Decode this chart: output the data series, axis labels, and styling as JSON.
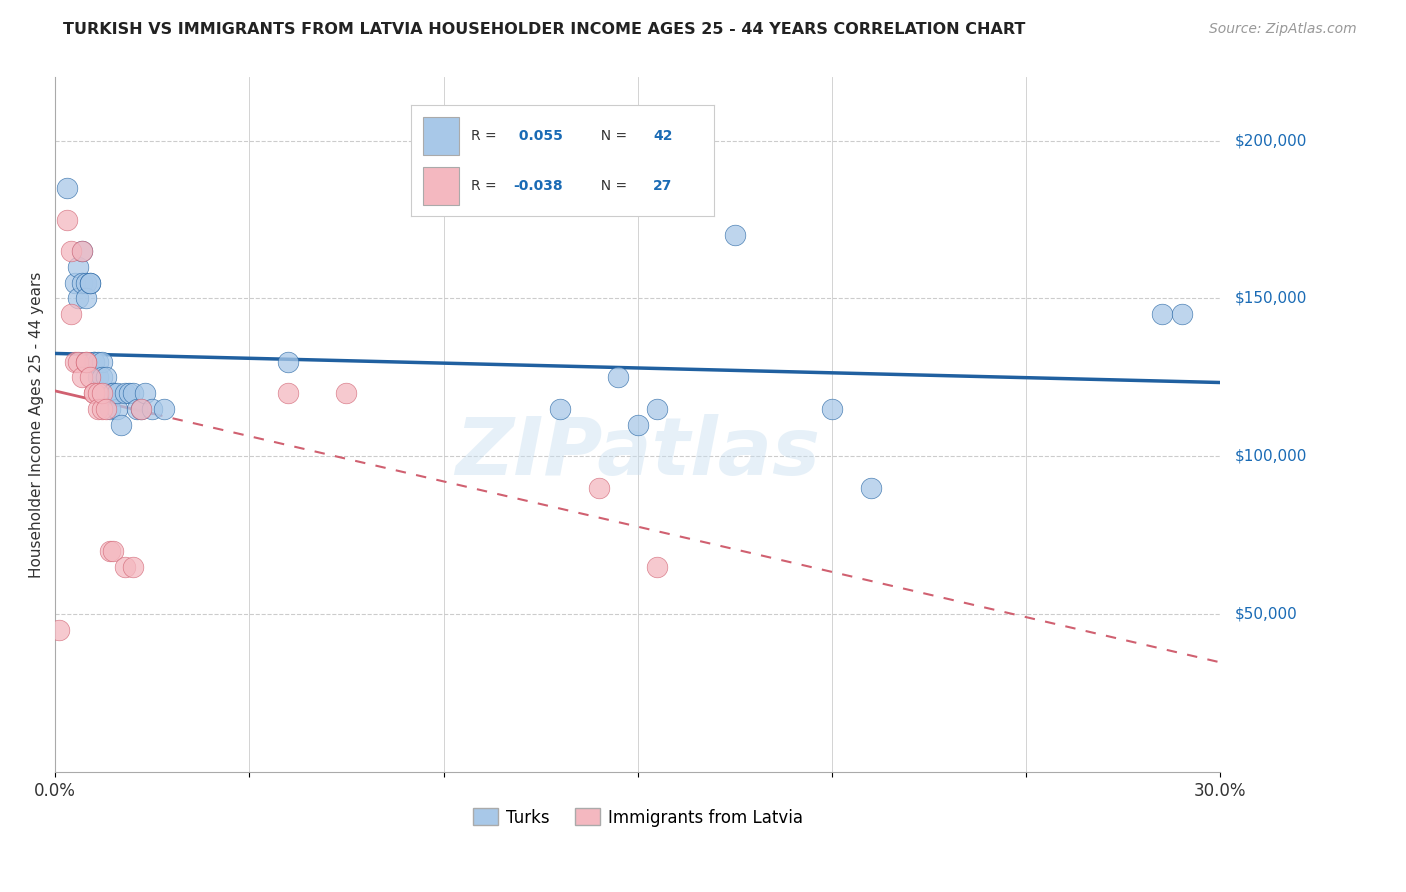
{
  "title": "TURKISH VS IMMIGRANTS FROM LATVIA HOUSEHOLDER INCOME AGES 25 - 44 YEARS CORRELATION CHART",
  "source": "Source: ZipAtlas.com",
  "ylabel": "Householder Income Ages 25 - 44 years",
  "yticks": [
    50000,
    100000,
    150000,
    200000
  ],
  "ytick_labels": [
    "$50,000",
    "$100,000",
    "$150,000",
    "$200,000"
  ],
  "xlim": [
    0.0,
    0.3
  ],
  "ylim": [
    0,
    220000
  ],
  "watermark": "ZIPatlas",
  "blue_color": "#a8c8e8",
  "pink_color": "#f4b8c0",
  "trendline_blue_color": "#2060a0",
  "trendline_pink_color": "#d06070",
  "turks_x": [
    0.003,
    0.005,
    0.006,
    0.006,
    0.007,
    0.007,
    0.008,
    0.008,
    0.009,
    0.009,
    0.01,
    0.01,
    0.011,
    0.011,
    0.012,
    0.012,
    0.013,
    0.013,
    0.014,
    0.015,
    0.015,
    0.016,
    0.016,
    0.017,
    0.018,
    0.019,
    0.02,
    0.021,
    0.022,
    0.023,
    0.025,
    0.028,
    0.06,
    0.13,
    0.145,
    0.15,
    0.155,
    0.175,
    0.2,
    0.21,
    0.285,
    0.29
  ],
  "turks_y": [
    185000,
    155000,
    150000,
    160000,
    155000,
    165000,
    155000,
    150000,
    155000,
    155000,
    130000,
    130000,
    130000,
    125000,
    130000,
    125000,
    120000,
    125000,
    115000,
    120000,
    120000,
    115000,
    120000,
    110000,
    120000,
    120000,
    120000,
    115000,
    115000,
    120000,
    115000,
    115000,
    130000,
    115000,
    125000,
    110000,
    115000,
    170000,
    115000,
    90000,
    145000,
    145000
  ],
  "latvia_x": [
    0.001,
    0.003,
    0.004,
    0.004,
    0.005,
    0.006,
    0.007,
    0.007,
    0.008,
    0.008,
    0.009,
    0.01,
    0.01,
    0.011,
    0.011,
    0.012,
    0.012,
    0.013,
    0.014,
    0.015,
    0.018,
    0.02,
    0.022,
    0.06,
    0.075,
    0.14,
    0.155
  ],
  "latvia_y": [
    45000,
    175000,
    165000,
    145000,
    130000,
    130000,
    125000,
    165000,
    130000,
    130000,
    125000,
    120000,
    120000,
    120000,
    115000,
    115000,
    120000,
    115000,
    70000,
    70000,
    65000,
    65000,
    115000,
    120000,
    120000,
    90000,
    65000
  ]
}
